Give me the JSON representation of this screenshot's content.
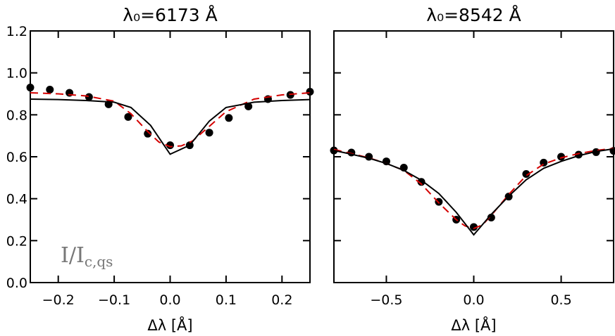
{
  "chart_data": [
    {
      "type": "line",
      "title": "λ₀=6173 Å",
      "xlabel": "Δλ [Å]",
      "ylabel": "",
      "xlim": [
        -0.25,
        0.25
      ],
      "ylim": [
        0.0,
        1.2
      ],
      "xticks": [
        -0.2,
        -0.1,
        0.0,
        0.1,
        0.2
      ],
      "xtick_labels": [
        "−0.2",
        "−0.1",
        "0.0",
        "0.1",
        "0.2"
      ],
      "yticks": [
        0.0,
        0.2,
        0.4,
        0.6,
        0.8,
        1.0,
        1.2
      ],
      "ytick_labels": [
        "0.0",
        "0.2",
        "0.4",
        "0.6",
        "0.8",
        "1.0",
        "1.2"
      ],
      "annotation": "I/I",
      "annotation_sub": "c,qs",
      "series": [
        {
          "style": "dots",
          "x": [
            -0.25,
            -0.215,
            -0.18,
            -0.145,
            -0.11,
            -0.075,
            -0.04,
            0.0,
            0.035,
            0.07,
            0.105,
            0.14,
            0.175,
            0.215,
            0.25
          ],
          "y": [
            0.93,
            0.92,
            0.905,
            0.885,
            0.85,
            0.79,
            0.71,
            0.655,
            0.655,
            0.715,
            0.785,
            0.84,
            0.875,
            0.895,
            0.91
          ]
        },
        {
          "style": "dashed-red",
          "x": [
            -0.25,
            -0.2,
            -0.15,
            -0.1,
            -0.07,
            -0.04,
            -0.02,
            0.0,
            0.02,
            0.04,
            0.07,
            0.1,
            0.15,
            0.2,
            0.25
          ],
          "y": [
            0.905,
            0.9,
            0.89,
            0.865,
            0.805,
            0.72,
            0.67,
            0.648,
            0.652,
            0.675,
            0.745,
            0.815,
            0.875,
            0.895,
            0.905
          ]
        },
        {
          "style": "solid-black",
          "x": [
            -0.25,
            -0.2,
            -0.15,
            -0.1,
            -0.07,
            -0.035,
            0.0,
            0.035,
            0.07,
            0.1,
            0.15,
            0.2,
            0.25
          ],
          "y": [
            0.875,
            0.873,
            0.868,
            0.86,
            0.835,
            0.75,
            0.612,
            0.655,
            0.77,
            0.835,
            0.86,
            0.868,
            0.873
          ]
        }
      ]
    },
    {
      "type": "line",
      "title": "λ₀=8542 Å",
      "xlabel": "Δλ [Å]",
      "ylabel": "",
      "xlim": [
        -0.8,
        0.8
      ],
      "ylim": [
        0.0,
        1.2
      ],
      "xticks": [
        -0.5,
        0.0,
        0.5
      ],
      "xtick_labels": [
        "−0.5",
        "0.0",
        "0.5"
      ],
      "yticks": [
        0.0,
        0.2,
        0.4,
        0.6,
        0.8,
        1.0,
        1.2
      ],
      "ytick_labels": [],
      "series": [
        {
          "style": "dots",
          "x": [
            -0.8,
            -0.7,
            -0.6,
            -0.5,
            -0.4,
            -0.3,
            -0.2,
            -0.1,
            0.0,
            0.1,
            0.2,
            0.3,
            0.4,
            0.5,
            0.6,
            0.7,
            0.8
          ],
          "y": [
            0.63,
            0.62,
            0.6,
            0.578,
            0.548,
            0.48,
            0.385,
            0.3,
            0.265,
            0.31,
            0.41,
            0.518,
            0.572,
            0.6,
            0.61,
            0.622,
            0.628
          ]
        },
        {
          "style": "dashed-red",
          "x": [
            -0.8,
            -0.7,
            -0.6,
            -0.5,
            -0.4,
            -0.3,
            -0.2,
            -0.15,
            -0.1,
            -0.05,
            0.0,
            0.05,
            0.1,
            0.15,
            0.2,
            0.3,
            0.4,
            0.5,
            0.6,
            0.7,
            0.8
          ],
          "y": [
            0.635,
            0.615,
            0.595,
            0.568,
            0.535,
            0.47,
            0.38,
            0.34,
            0.3,
            0.27,
            0.258,
            0.275,
            0.32,
            0.37,
            0.42,
            0.51,
            0.565,
            0.595,
            0.615,
            0.63,
            0.64
          ]
        },
        {
          "style": "solid-black",
          "x": [
            -0.8,
            -0.7,
            -0.6,
            -0.5,
            -0.4,
            -0.3,
            -0.2,
            -0.1,
            0.0,
            0.1,
            0.2,
            0.3,
            0.4,
            0.5,
            0.6,
            0.7,
            0.8
          ],
          "y": [
            0.63,
            0.612,
            0.593,
            0.568,
            0.535,
            0.488,
            0.425,
            0.335,
            0.228,
            0.325,
            0.412,
            0.49,
            0.545,
            0.578,
            0.605,
            0.625,
            0.638
          ]
        }
      ]
    }
  ]
}
